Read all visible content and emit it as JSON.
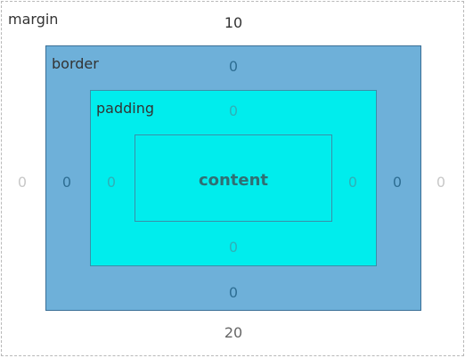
{
  "box_model": {
    "margin": {
      "title": "margin",
      "top": "10",
      "right": "0",
      "bottom": "20",
      "left": "0"
    },
    "border": {
      "title": "border",
      "top": "0",
      "right": "0",
      "bottom": "0",
      "left": "0"
    },
    "padding": {
      "title": "padding",
      "top": "0",
      "right": "0",
      "bottom": "0",
      "left": "0"
    },
    "content": {
      "label": "content"
    }
  },
  "colors": {
    "margin_bg": "#ffffff",
    "border_bg": "#6eb0d9",
    "padding_bg": "#00eded",
    "content_bg": "#00eded"
  }
}
